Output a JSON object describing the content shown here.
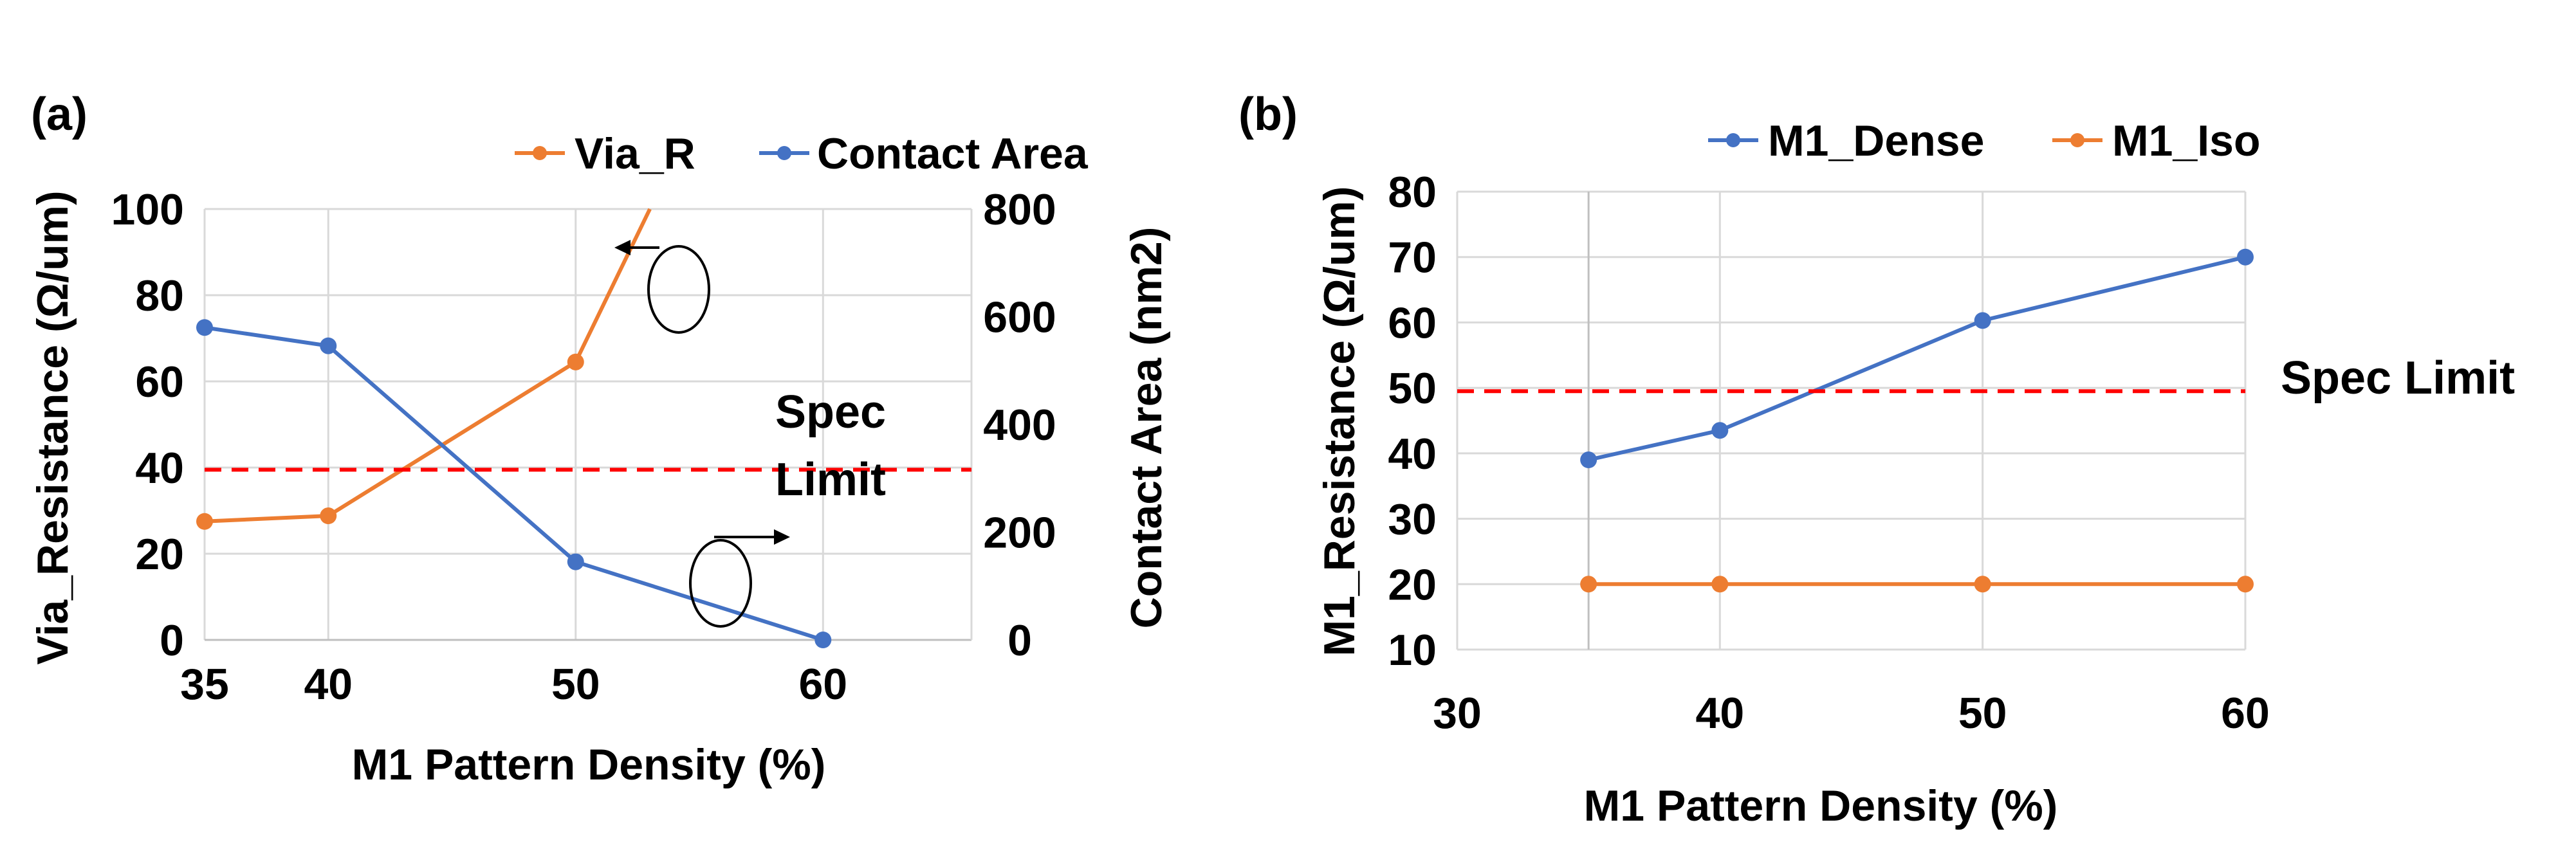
{
  "colors": {
    "blue": "#4472c4",
    "orange": "#ed7d31",
    "spec": "#ff0000",
    "grid": "#d9d9d9"
  },
  "chart_data": [
    {
      "panel_label": "(a)",
      "type": "line",
      "xlabel": "M1 Pattern Density (%)",
      "ylabel_left": "Via_Resistance (Ω/um)",
      "ylabel_right": "Contact Area (nm2)",
      "xlim": [
        35,
        66
      ],
      "x_ticks": [
        "35",
        "40",
        "50",
        "60"
      ],
      "ylim_left": [
        0,
        100
      ],
      "y_ticks_left": [
        "0",
        "20",
        "40",
        "60",
        "80",
        "100"
      ],
      "ylim_right": [
        0,
        800
      ],
      "y_ticks_right": [
        "0",
        "200",
        "400",
        "600",
        "800"
      ],
      "grid": true,
      "legend_position": "top",
      "series": [
        {
          "name": "Via_R",
          "axis": "left",
          "color": "#ed7d31",
          "x": [
            35,
            40,
            50,
            53
          ],
          "y": [
            27.5,
            28.8,
            64.5,
            100
          ],
          "markers": [
            true,
            true,
            true,
            false
          ]
        },
        {
          "name": "Contact Area",
          "axis": "right",
          "color": "#4472c4",
          "x": [
            35,
            40,
            50,
            60
          ],
          "y": [
            580,
            546,
            145,
            0
          ],
          "markers": [
            true,
            true,
            true,
            true
          ]
        }
      ],
      "spec_limit": {
        "label_line1": "Spec",
        "label_line2": "Limit",
        "value": 39.5,
        "axis": "left"
      }
    },
    {
      "panel_label": "(b)",
      "type": "line",
      "xlabel": "M1 Pattern Density (%)",
      "ylabel": "M1_Resistance (Ω/um)",
      "xlim": [
        30,
        60
      ],
      "x_ticks": [
        "30",
        "40",
        "50",
        "60"
      ],
      "ylim": [
        10,
        80
      ],
      "y_ticks": [
        "10",
        "20",
        "30",
        "40",
        "50",
        "60",
        "70",
        "80"
      ],
      "grid": true,
      "legend_position": "top",
      "series": [
        {
          "name": "M1_Dense",
          "color": "#4472c4",
          "x": [
            35,
            40,
            50,
            60
          ],
          "y": [
            39,
            43.5,
            60.3,
            70
          ]
        },
        {
          "name": "M1_Iso",
          "color": "#ed7d31",
          "x": [
            35,
            40,
            50,
            60
          ],
          "y": [
            20,
            20,
            20,
            20
          ]
        }
      ],
      "spec_limit": {
        "label": "Spec Limit",
        "value": 49.5
      }
    }
  ]
}
